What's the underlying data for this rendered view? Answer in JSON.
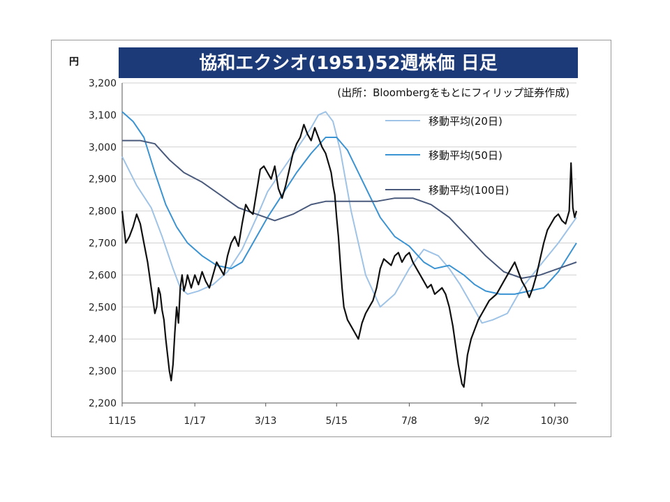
{
  "chart_data": {
    "type": "line",
    "title": "協和エクシオ(1951)52週株価 日足",
    "source": "(出所：Bloombergをもとにフィリップ証券作成)",
    "yunit": "円",
    "ylim": [
      2200,
      3200
    ],
    "yticks": [
      2200,
      2300,
      2400,
      2500,
      2600,
      2700,
      2800,
      2900,
      3000,
      3100,
      3200
    ],
    "ytick_labels": [
      "2,200",
      "2,300",
      "2,400",
      "2,500",
      "2,600",
      "2,700",
      "2,800",
      "2,900",
      "3,000",
      "3,100",
      "3,200"
    ],
    "xlim": [
      0,
      250
    ],
    "xticks": [
      {
        "x": 0,
        "label": "11/15"
      },
      {
        "x": 40,
        "label": "1/17"
      },
      {
        "x": 79,
        "label": "3/13"
      },
      {
        "x": 118,
        "label": "5/15"
      },
      {
        "x": 158,
        "label": "7/8"
      },
      {
        "x": 198,
        "label": "9/2"
      },
      {
        "x": 238,
        "label": "10/30"
      }
    ],
    "grid": true,
    "legend_position": "top-right",
    "price": {
      "x": [
        0,
        2,
        4,
        6,
        8,
        10,
        12,
        14,
        15,
        16,
        17,
        18,
        19,
        20,
        21,
        22,
        23,
        24,
        25,
        26,
        27,
        28,
        29,
        30,
        31,
        32,
        33,
        34,
        35,
        36,
        37,
        38,
        40,
        42,
        44,
        46,
        48,
        50,
        52,
        54,
        56,
        58,
        60,
        62,
        64,
        66,
        68,
        70,
        72,
        74,
        76,
        78,
        80,
        82,
        84,
        86,
        88,
        90,
        92,
        94,
        96,
        98,
        100,
        102,
        104,
        106,
        108,
        110,
        112,
        114,
        115,
        116,
        117,
        118,
        119,
        120,
        121,
        122,
        124,
        126,
        128,
        130,
        132,
        134,
        136,
        138,
        140,
        142,
        144,
        146,
        148,
        150,
        152,
        154,
        156,
        158,
        160,
        162,
        164,
        166,
        168,
        170,
        172,
        174,
        176,
        178,
        180,
        182,
        183,
        184,
        185,
        186,
        187,
        188,
        189,
        190,
        192,
        194,
        196,
        198,
        200,
        202,
        204,
        206,
        208,
        210,
        212,
        214,
        216,
        218,
        220,
        222,
        224,
        226,
        228,
        230,
        232,
        234,
        236,
        238,
        240,
        242,
        244,
        245,
        246,
        247,
        248,
        249,
        250
      ],
      "y": [
        2800,
        2700,
        2720,
        2750,
        2790,
        2760,
        2700,
        2640,
        2600,
        2560,
        2520,
        2480,
        2500,
        2560,
        2540,
        2490,
        2460,
        2400,
        2350,
        2300,
        2270,
        2320,
        2420,
        2500,
        2450,
        2560,
        2600,
        2550,
        2570,
        2600,
        2580,
        2560,
        2600,
        2570,
        2610,
        2580,
        2560,
        2600,
        2640,
        2620,
        2600,
        2660,
        2700,
        2720,
        2690,
        2760,
        2820,
        2800,
        2790,
        2860,
        2930,
        2940,
        2920,
        2900,
        2940,
        2870,
        2840,
        2880,
        2930,
        2980,
        3010,
        3030,
        3070,
        3040,
        3020,
        3060,
        3030,
        3000,
        2980,
        2940,
        2920,
        2880,
        2850,
        2780,
        2720,
        2640,
        2560,
        2500,
        2460,
        2440,
        2420,
        2400,
        2450,
        2480,
        2500,
        2520,
        2560,
        2620,
        2650,
        2640,
        2630,
        2660,
        2670,
        2640,
        2660,
        2670,
        2640,
        2620,
        2600,
        2580,
        2560,
        2570,
        2540,
        2550,
        2560,
        2540,
        2500,
        2440,
        2400,
        2360,
        2320,
        2290,
        2260,
        2250,
        2300,
        2350,
        2400,
        2430,
        2460,
        2480,
        2500,
        2520,
        2530,
        2540,
        2560,
        2580,
        2600,
        2620,
        2640,
        2610,
        2580,
        2560,
        2530,
        2560,
        2600,
        2650,
        2700,
        2740,
        2760,
        2780,
        2790,
        2770,
        2760,
        2780,
        2800,
        2950,
        2810,
        2780,
        2800
      ]
    },
    "series": [
      {
        "name": "移動平均(20日)",
        "color": "#9ec3e6",
        "x": [
          0,
          8,
          16,
          22,
          28,
          32,
          36,
          42,
          50,
          58,
          66,
          74,
          80,
          86,
          92,
          98,
          104,
          108,
          112,
          116,
          120,
          126,
          134,
          142,
          150,
          158,
          166,
          174,
          180,
          186,
          192,
          198,
          204,
          212,
          220,
          230,
          240,
          250
        ],
        "y": [
          2970,
          2880,
          2810,
          2720,
          2620,
          2560,
          2540,
          2550,
          2570,
          2610,
          2680,
          2780,
          2860,
          2910,
          2960,
          3010,
          3060,
          3100,
          3110,
          3080,
          2990,
          2800,
          2600,
          2500,
          2540,
          2620,
          2680,
          2660,
          2620,
          2570,
          2510,
          2450,
          2460,
          2480,
          2560,
          2630,
          2700,
          2780
        ]
      },
      {
        "name": "移動平均(50日)",
        "color": "#3a93d2",
        "x": [
          0,
          6,
          12,
          18,
          24,
          30,
          36,
          44,
          52,
          60,
          66,
          72,
          80,
          88,
          96,
          104,
          112,
          118,
          124,
          130,
          136,
          142,
          150,
          158,
          166,
          172,
          180,
          188,
          194,
          200,
          208,
          216,
          224,
          232,
          240,
          250
        ],
        "y": [
          3110,
          3080,
          3030,
          2920,
          2820,
          2750,
          2700,
          2660,
          2630,
          2620,
          2640,
          2700,
          2780,
          2850,
          2920,
          2980,
          3030,
          3030,
          2990,
          2920,
          2850,
          2780,
          2720,
          2690,
          2640,
          2620,
          2630,
          2600,
          2570,
          2550,
          2540,
          2540,
          2550,
          2560,
          2610,
          2700
        ]
      },
      {
        "name": "移動平均(100日)",
        "color": "#4a5a7c",
        "x": [
          0,
          10,
          18,
          26,
          34,
          44,
          54,
          64,
          74,
          84,
          94,
          104,
          112,
          120,
          130,
          140,
          150,
          160,
          170,
          180,
          190,
          200,
          210,
          220,
          230,
          240,
          250
        ],
        "y": [
          3020,
          3020,
          3010,
          2960,
          2920,
          2890,
          2850,
          2810,
          2790,
          2770,
          2790,
          2820,
          2830,
          2830,
          2830,
          2830,
          2840,
          2840,
          2820,
          2780,
          2720,
          2660,
          2610,
          2590,
          2600,
          2620,
          2640
        ]
      }
    ]
  }
}
